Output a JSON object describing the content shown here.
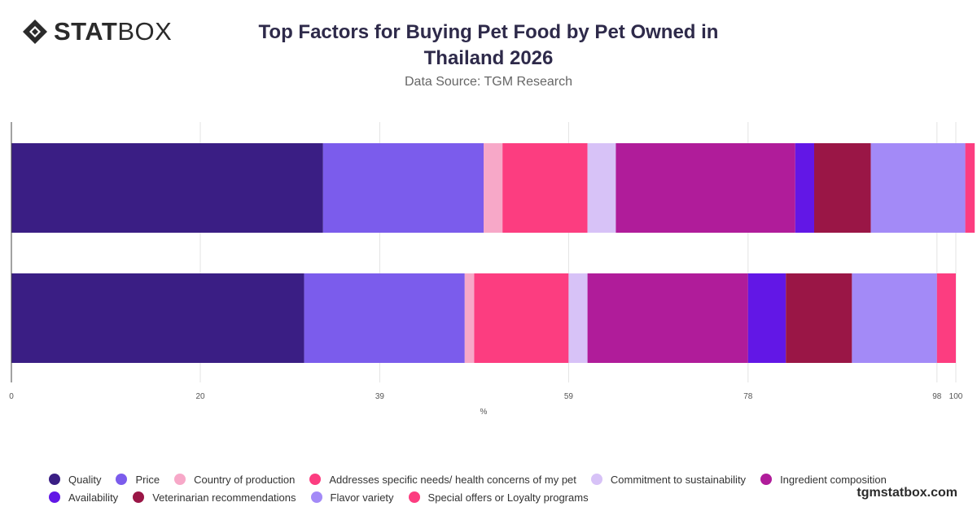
{
  "logo": {
    "bold": "STAT",
    "light": "BOX"
  },
  "header": {
    "title_line1": "Top Factors for Buying Pet Food by Pet Owned in",
    "title_line2": "Thailand 2026",
    "subtitle": "Data Source: TGM Research"
  },
  "footer": {
    "brand": "tgmstatbox.com"
  },
  "chart_data": {
    "type": "bar",
    "orientation": "horizontal",
    "stacked": true,
    "categories": [
      "",
      ""
    ],
    "title": "Top Factors for Buying Pet Food by Pet Owned in Thailand 2026",
    "xlabel": "%",
    "ylabel": "",
    "xlim": [
      0,
      100
    ],
    "x_ticks": [
      0,
      20,
      39,
      59,
      78,
      98,
      100
    ],
    "grid": true,
    "legend_position": "bottom",
    "series": [
      {
        "name": "Quality",
        "color": "#3a1e84",
        "values": [
          33,
          31
        ]
      },
      {
        "name": "Price",
        "color": "#7b5cec",
        "values": [
          17,
          17
        ]
      },
      {
        "name": "Country of production",
        "color": "#f7a8c8",
        "values": [
          2,
          1
        ]
      },
      {
        "name": "Addresses specific needs/ health concerns of my pet",
        "color": "#fc3d80",
        "values": [
          9,
          10
        ]
      },
      {
        "name": "Commitment to sustainability",
        "color": "#d7c2f7",
        "values": [
          3,
          2
        ]
      },
      {
        "name": "Ingredient composition",
        "color": "#b01c9a",
        "values": [
          19,
          17
        ]
      },
      {
        "name": "Availability",
        "color": "#6217e6",
        "values": [
          2,
          4
        ]
      },
      {
        "name": "Veterinarian recommendations",
        "color": "#9a1646",
        "values": [
          6,
          7
        ]
      },
      {
        "name": "Flavor variety",
        "color": "#a38af7",
        "values": [
          10,
          9
        ]
      },
      {
        "name": "Special offers or Loyalty programs",
        "color": "#fc3d80",
        "values": [
          1,
          2
        ]
      }
    ]
  }
}
